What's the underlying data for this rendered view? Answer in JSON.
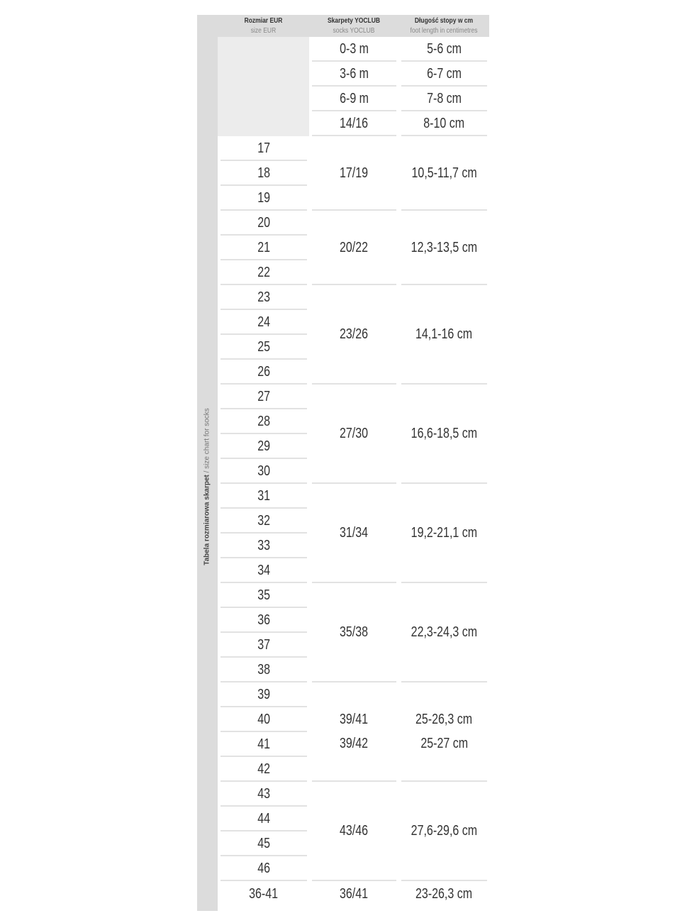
{
  "side_label": {
    "bold": "Tabela rozmiarowa skarpet",
    "rest": " / size chart for socks"
  },
  "headers": [
    {
      "main": "Rozmiar EUR",
      "sub": "size EUR"
    },
    {
      "main": "Skarpety  YOCLUB",
      "sub": "socks YOCLUB"
    },
    {
      "main": "Długość stopy w cm",
      "sub": "foot length in centimetres"
    }
  ],
  "infant_rows": [
    {
      "sock": "0-3 m",
      "length": "5-6 cm"
    },
    {
      "sock": "3-6 m",
      "length": "6-7 cm"
    },
    {
      "sock": "6-9 m",
      "length": "7-8 cm"
    },
    {
      "sock": "14/16",
      "length": "8-10 cm"
    }
  ],
  "groups": [
    {
      "eur": [
        "17",
        "18",
        "19"
      ],
      "sock": [
        "17/19"
      ],
      "length": [
        "10,5-11,7 cm"
      ]
    },
    {
      "eur": [
        "20",
        "21",
        "22"
      ],
      "sock": [
        "20/22"
      ],
      "length": [
        "12,3-13,5 cm"
      ]
    },
    {
      "eur": [
        "23",
        "24",
        "25",
        "26"
      ],
      "sock": [
        "23/26"
      ],
      "length": [
        "14,1-16 cm"
      ]
    },
    {
      "eur": [
        "27",
        "28",
        "29",
        "30"
      ],
      "sock": [
        "27/30"
      ],
      "length": [
        "16,6-18,5 cm"
      ]
    },
    {
      "eur": [
        "31",
        "32",
        "33",
        "34"
      ],
      "sock": [
        "31/34"
      ],
      "length": [
        "19,2-21,1 cm"
      ]
    },
    {
      "eur": [
        "35",
        "36",
        "37",
        "38"
      ],
      "sock": [
        "35/38"
      ],
      "length": [
        "22,3-24,3 cm"
      ]
    },
    {
      "eur": [
        "39",
        "40",
        "41",
        "42"
      ],
      "sock": [
        "39/41",
        "39/42"
      ],
      "length": [
        "25-26,3 cm",
        "25-27 cm"
      ]
    },
    {
      "eur": [
        "43",
        "44",
        "45",
        "46"
      ],
      "sock": [
        "43/46"
      ],
      "length": [
        "27,6-29,6 cm"
      ]
    },
    {
      "eur": [
        "36-41"
      ],
      "sock": [
        "36/41"
      ],
      "length": [
        "23-26,3 cm"
      ]
    }
  ]
}
